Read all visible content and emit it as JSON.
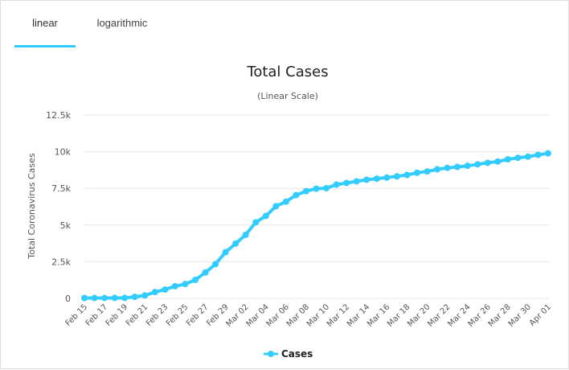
{
  "tabs": [
    {
      "label": "linear",
      "active": true
    },
    {
      "label": "logarithmic",
      "active": false
    }
  ],
  "colors": {
    "series": "#33ccff",
    "grid": "#e6e6e6",
    "accent": "#33ccff"
  },
  "chart_data": {
    "type": "line",
    "title": "Total Cases",
    "subtitle": "(Linear Scale)",
    "xlabel": "",
    "ylabel": "Total Coronavirus Cases",
    "ylim": [
      0,
      12500
    ],
    "yticks": [
      0,
      2500,
      5000,
      7500,
      10000,
      12500
    ],
    "ytick_labels": [
      "0",
      "2.5k",
      "5k",
      "7.5k",
      "10k",
      "12.5k"
    ],
    "grid": "horizontal",
    "legend": "bottom-center",
    "categories": [
      "Feb 15",
      "Feb 16",
      "Feb 17",
      "Feb 18",
      "Feb 19",
      "Feb 20",
      "Feb 21",
      "Feb 22",
      "Feb 23",
      "Feb 24",
      "Feb 25",
      "Feb 26",
      "Feb 27",
      "Feb 28",
      "Feb 29",
      "Mar 01",
      "Mar 02",
      "Mar 03",
      "Mar 04",
      "Mar 05",
      "Mar 06",
      "Mar 07",
      "Mar 08",
      "Mar 09",
      "Mar 10",
      "Mar 11",
      "Mar 12",
      "Mar 13",
      "Mar 14",
      "Mar 15",
      "Mar 16",
      "Mar 17",
      "Mar 18",
      "Mar 19",
      "Mar 20",
      "Mar 21",
      "Mar 22",
      "Mar 23",
      "Mar 24",
      "Mar 25",
      "Mar 26",
      "Mar 27",
      "Mar 28",
      "Mar 29",
      "Mar 30",
      "Mar 31",
      "Apr 01"
    ],
    "x_tick_labels": [
      "Feb 15",
      "Feb 17",
      "Feb 19",
      "Feb 21",
      "Feb 23",
      "Feb 25",
      "Feb 27",
      "Feb 29",
      "Mar 02",
      "Mar 04",
      "Mar 06",
      "Mar 08",
      "Mar 10",
      "Mar 12",
      "Mar 14",
      "Mar 16",
      "Mar 18",
      "Mar 20",
      "Mar 22",
      "Mar 24",
      "Mar 26",
      "Mar 28",
      "Mar 30",
      "Apr 01"
    ],
    "series": [
      {
        "name": "Cases",
        "values": [
          28,
          29,
          30,
          31,
          31,
          104,
          204,
          433,
          602,
          833,
          977,
          1261,
          1766,
          2337,
          3150,
          3736,
          4335,
          5186,
          5621,
          6284,
          6593,
          7041,
          7313,
          7478,
          7513,
          7755,
          7869,
          7979,
          8086,
          8162,
          8236,
          8320,
          8413,
          8565,
          8652,
          8799,
          8897,
          8961,
          9037,
          9137,
          9241,
          9332,
          9478,
          9583,
          9661,
          9786,
          9887
        ]
      }
    ]
  }
}
